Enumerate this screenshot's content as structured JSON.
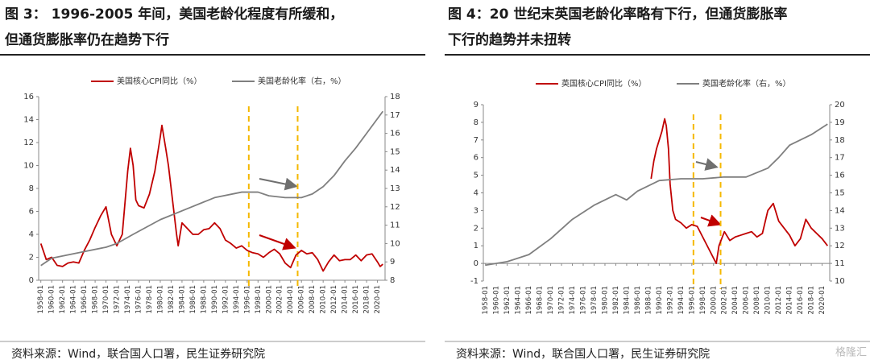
{
  "figures": [
    {
      "title": [
        "图 3：  1996-2005 年间，美国老龄化程度有所缓和，",
        "但通货膨胀率仍在趋势下行"
      ],
      "source": "资料来源：Wind，联合国人口署，民生证券研究院"
    },
    {
      "title": [
        "图 4：20 世纪末英国老龄化率略有下行，但通货膨胀率",
        "下行的趋势并未扭转"
      ],
      "source": "资料来源：Wind，联合国人口署，民生证券研究院"
    }
  ],
  "watermark": "格隆汇",
  "chart_data": [
    {
      "type": "line",
      "xlim": [
        1957.6,
        2021.4
      ],
      "ylim": [
        0,
        16
      ],
      "y2lim": [
        8,
        18
      ],
      "yticks": [
        0,
        2,
        4,
        6,
        8,
        10,
        12,
        14,
        16
      ],
      "y2ticks": [
        8,
        9,
        10,
        11,
        12,
        13,
        14,
        15,
        16,
        17,
        18
      ],
      "xticks": [
        {
          "value": 1958,
          "label": "1958-01"
        },
        {
          "value": 1960,
          "label": "1960-01"
        },
        {
          "value": 1962,
          "label": "1962-01"
        },
        {
          "value": 1964,
          "label": "1964-01"
        },
        {
          "value": 1966,
          "label": "1966-01"
        },
        {
          "value": 1968,
          "label": "1968-01"
        },
        {
          "value": 1970,
          "label": "1970-01"
        },
        {
          "value": 1972,
          "label": "1972-01"
        },
        {
          "value": 1974,
          "label": "1974-01"
        },
        {
          "value": 1976,
          "label": "1976-01"
        },
        {
          "value": 1978,
          "label": "1978-01"
        },
        {
          "value": 1980,
          "label": "1980-01"
        },
        {
          "value": 1982,
          "label": "1982-01"
        },
        {
          "value": 1984,
          "label": "1984-01"
        },
        {
          "value": 1986,
          "label": "1986-01"
        },
        {
          "value": 1988,
          "label": "1988-01"
        },
        {
          "value": 1990,
          "label": "1990-01"
        },
        {
          "value": 1992,
          "label": "1992-01"
        },
        {
          "value": 1994,
          "label": "1994-01"
        },
        {
          "value": 1996,
          "label": "1996-01"
        },
        {
          "value": 1998,
          "label": "1998-01"
        },
        {
          "value": 2000,
          "label": "2000-01"
        },
        {
          "value": 2002,
          "label": "2002-01"
        },
        {
          "value": 2004,
          "label": "2004-01"
        },
        {
          "value": 2006,
          "label": "2006-01"
        },
        {
          "value": 2008,
          "label": "2008-01"
        },
        {
          "value": 2010,
          "label": "2010-01"
        },
        {
          "value": 2012,
          "label": "2012-01"
        },
        {
          "value": 2014,
          "label": "2014-01"
        },
        {
          "value": 2016,
          "label": "2016-01"
        },
        {
          "value": 2018,
          "label": "2018-01"
        },
        {
          "value": 2020,
          "label": "2020-01"
        }
      ],
      "reference_lines": {
        "color": "#f5b800",
        "x": [
          1996.3,
          2005.3
        ]
      },
      "series": [
        {
          "name": "美国核心CPI同比（%）",
          "color": "#c00000",
          "x": [
            1958,
            1959,
            1960,
            1961,
            1962,
            1963,
            1964,
            1965,
            1966,
            1967,
            1968,
            1969,
            1970,
            1971,
            1972,
            1973,
            1974,
            1974.5,
            1975,
            1975.5,
            1976,
            1977,
            1978,
            1979,
            1980,
            1980.3,
            1981,
            1981.5,
            1982,
            1983,
            1983.3,
            1984,
            1985,
            1986,
            1987,
            1988,
            1989,
            1990,
            1991,
            1992,
            1993,
            1994,
            1995,
            1996,
            1997,
            1998,
            1999,
            2000,
            2001,
            2002,
            2003,
            2004,
            2005,
            2006,
            2007,
            2008,
            2009,
            2010,
            2011,
            2012,
            2013,
            2014,
            2015,
            2016,
            2017,
            2018,
            2019,
            2020,
            2020.5,
            2021
          ],
          "values": [
            3.2,
            1.8,
            2.0,
            1.3,
            1.2,
            1.5,
            1.6,
            1.5,
            2.6,
            3.5,
            4.6,
            5.6,
            6.4,
            4.0,
            3.0,
            4.0,
            9.5,
            11.5,
            10,
            7,
            6.5,
            6.3,
            7.5,
            9.5,
            12.5,
            13.5,
            11.5,
            10,
            8,
            4,
            3,
            5,
            4.5,
            4.0,
            4.0,
            4.4,
            4.5,
            5.0,
            4.5,
            3.5,
            3.2,
            2.8,
            3.0,
            2.6,
            2.4,
            2.3,
            2.0,
            2.4,
            2.7,
            2.3,
            1.5,
            1.1,
            2.2,
            2.6,
            2.3,
            2.4,
            1.8,
            0.8,
            1.6,
            2.2,
            1.7,
            1.8,
            1.8,
            2.2,
            1.7,
            2.2,
            2.3,
            1.6,
            1.2,
            1.4
          ]
        },
        {
          "name": "美国老龄化率（右，%）",
          "color": "#7f7f7f",
          "axis": "y2",
          "x": [
            1958,
            1960,
            1965,
            1970,
            1972,
            1975,
            1980,
            1985,
            1990,
            1995,
            1998,
            2000,
            2003,
            2006,
            2008,
            2010,
            2012,
            2014,
            2016,
            2018,
            2020,
            2021
          ],
          "values": [
            8.8,
            9.2,
            9.5,
            9.8,
            10.0,
            10.5,
            11.3,
            11.9,
            12.5,
            12.8,
            12.8,
            12.6,
            12.5,
            12.5,
            12.7,
            13.1,
            13.7,
            14.5,
            15.2,
            16.0,
            16.8,
            17.2
          ]
        }
      ]
    },
    {
      "type": "line",
      "xlim": [
        1957.6,
        2021.4
      ],
      "ylim": [
        -1,
        9
      ],
      "y2lim": [
        10,
        20
      ],
      "yticks": [
        -1,
        0,
        1,
        2,
        3,
        4,
        5,
        6,
        7,
        8,
        9
      ],
      "y2ticks": [
        10,
        11,
        12,
        13,
        14,
        15,
        16,
        17,
        18,
        19,
        20
      ],
      "xticks": [
        {
          "value": 1958,
          "label": "1958-01"
        },
        {
          "value": 1960,
          "label": "1960-01"
        },
        {
          "value": 1962,
          "label": "1962-01"
        },
        {
          "value": 1964,
          "label": "1964-01"
        },
        {
          "value": 1966,
          "label": "1966-01"
        },
        {
          "value": 1968,
          "label": "1968-01"
        },
        {
          "value": 1970,
          "label": "1970-01"
        },
        {
          "value": 1972,
          "label": "1972-01"
        },
        {
          "value": 1974,
          "label": "1974-01"
        },
        {
          "value": 1976,
          "label": "1976-01"
        },
        {
          "value": 1978,
          "label": "1978-01"
        },
        {
          "value": 1980,
          "label": "1980-01"
        },
        {
          "value": 1982,
          "label": "1982-01"
        },
        {
          "value": 1984,
          "label": "1984-01"
        },
        {
          "value": 1986,
          "label": "1986-01"
        },
        {
          "value": 1988,
          "label": "1988-01"
        },
        {
          "value": 1990,
          "label": "1990-01"
        },
        {
          "value": 1992,
          "label": "1992-01"
        },
        {
          "value": 1994,
          "label": "1994-01"
        },
        {
          "value": 1996,
          "label": "1996-01"
        },
        {
          "value": 1998,
          "label": "1998-01"
        },
        {
          "value": 2000,
          "label": "2000-01"
        },
        {
          "value": 2002,
          "label": "2002-01"
        },
        {
          "value": 2004,
          "label": "2004-01"
        },
        {
          "value": 2006,
          "label": "2006-01"
        },
        {
          "value": 2008,
          "label": "2008-01"
        },
        {
          "value": 2010,
          "label": "2010-01"
        },
        {
          "value": 2012,
          "label": "2012-01"
        },
        {
          "value": 2014,
          "label": "2014-01"
        },
        {
          "value": 2016,
          "label": "2016-01"
        },
        {
          "value": 2018,
          "label": "2018-01"
        },
        {
          "value": 2020,
          "label": "2020-01"
        }
      ],
      "reference_lines": {
        "color": "#f5b800",
        "x": [
          1996.3,
          2001.3
        ]
      },
      "series": [
        {
          "name": "英国核心CPI同比（%）",
          "color": "#c00000",
          "x": [
            1988.5,
            1989,
            1989.5,
            1990,
            1990.5,
            1991,
            1991.3,
            1991.7,
            1992,
            1992.5,
            1993,
            1994,
            1995,
            1996,
            1997,
            1998,
            1999,
            2000,
            2000.5,
            2001,
            2002,
            2003,
            2004,
            2005,
            2006,
            2007,
            2008,
            2009,
            2010,
            2010.5,
            2011,
            2012,
            2013,
            2014,
            2015,
            2016,
            2017,
            2018,
            2019,
            2020,
            2021
          ],
          "values": [
            4.8,
            5.8,
            6.5,
            7.0,
            7.5,
            8.2,
            7.8,
            6.5,
            4.5,
            3,
            2.5,
            2.3,
            2.0,
            2.2,
            2.1,
            1.5,
            0.9,
            0.3,
            0,
            1.0,
            1.8,
            1.3,
            1.5,
            1.6,
            1.7,
            1.8,
            1.5,
            1.7,
            3.0,
            3.2,
            3.4,
            2.4,
            2.0,
            1.6,
            1.0,
            1.4,
            2.5,
            2.0,
            1.7,
            1.4,
            1.0
          ]
        },
        {
          "name": "英国老龄化率（右，%）",
          "color": "#7f7f7f",
          "axis": "y2",
          "x": [
            1958,
            1962,
            1966,
            1970,
            1974,
            1978,
            1982,
            1984,
            1986,
            1990,
            1994,
            1998,
            2002,
            2006,
            2010,
            2012,
            2014,
            2018,
            2021
          ],
          "values": [
            10.9,
            11.1,
            11.5,
            12.4,
            13.5,
            14.3,
            14.9,
            14.6,
            15.1,
            15.7,
            15.8,
            15.8,
            15.9,
            15.9,
            16.4,
            17.0,
            17.7,
            18.3,
            18.9
          ]
        }
      ]
    }
  ]
}
